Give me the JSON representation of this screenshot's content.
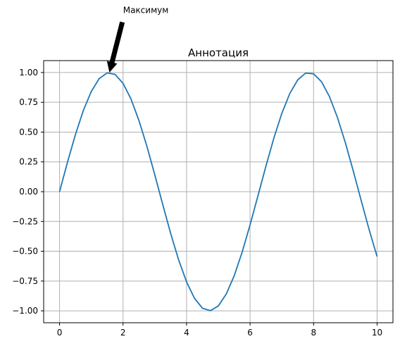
{
  "chart_data": {
    "type": "line",
    "title": "Аннотация",
    "xlabel": "",
    "ylabel": "",
    "xlim": [
      -0.5,
      10.5
    ],
    "ylim": [
      -1.1,
      1.1
    ],
    "x_ticks": [
      0,
      2,
      4,
      6,
      8,
      10
    ],
    "y_ticks": [
      -1.0,
      -0.75,
      -0.5,
      -0.25,
      0.0,
      0.25,
      0.5,
      0.75,
      1.0
    ],
    "x_tick_labels": [
      "0",
      "2",
      "4",
      "6",
      "8",
      "10"
    ],
    "y_tick_labels": [
      "−1.00",
      "−0.75",
      "−0.50",
      "−0.25",
      "0.00",
      "0.25",
      "0.50",
      "0.75",
      "1.00"
    ],
    "grid": true,
    "series": [
      {
        "color": "#1f77b4",
        "x": [
          0,
          0.25,
          0.5,
          0.75,
          1,
          1.25,
          1.5,
          1.75,
          2,
          2.25,
          2.5,
          2.75,
          3,
          3.25,
          3.5,
          3.75,
          4,
          4.25,
          4.5,
          4.75,
          5,
          5.25,
          5.5,
          5.75,
          6,
          6.25,
          6.5,
          6.75,
          7,
          7.25,
          7.5,
          7.75,
          8,
          8.25,
          8.5,
          8.75,
          9,
          9.25,
          9.5,
          9.75,
          10
        ],
        "y": [
          0.0,
          0.247,
          0.479,
          0.682,
          0.841,
          0.949,
          0.997,
          0.984,
          0.909,
          0.778,
          0.598,
          0.382,
          0.141,
          -0.108,
          -0.351,
          -0.572,
          -0.757,
          -0.895,
          -0.978,
          -0.999,
          -0.959,
          -0.859,
          -0.706,
          -0.508,
          -0.279,
          -0.033,
          0.215,
          0.45,
          0.657,
          0.823,
          0.938,
          0.995,
          0.989,
          0.923,
          0.798,
          0.624,
          0.412,
          0.174,
          -0.075,
          -0.319,
          -0.544
        ]
      }
    ],
    "annotations": [
      {
        "text": "Максимум",
        "xy": [
          1.5708,
          1.0
        ],
        "xytext": [
          2.0,
          1.5
        ]
      }
    ]
  }
}
